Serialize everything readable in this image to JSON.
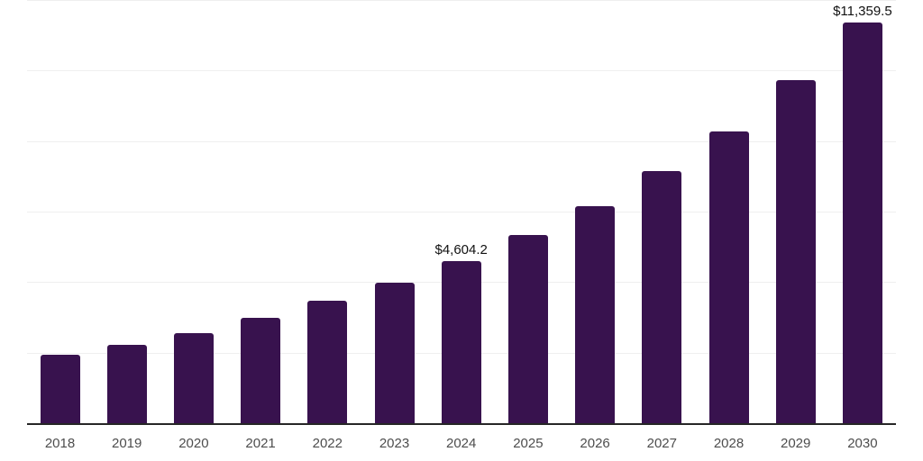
{
  "chart_data": {
    "type": "bar",
    "title": "",
    "xlabel": "",
    "ylabel": "",
    "categories": [
      "2018",
      "2019",
      "2020",
      "2021",
      "2022",
      "2023",
      "2024",
      "2025",
      "2026",
      "2027",
      "2028",
      "2029",
      "2030"
    ],
    "values": [
      1950,
      2230,
      2565,
      2975,
      3475,
      3990,
      4604.2,
      5335,
      6155,
      7155,
      8280,
      9720,
      11359.5
    ],
    "data_labels": [
      "",
      "",
      "",
      "",
      "",
      "",
      "$4,604.2",
      "",
      "",
      "",
      "",
      "",
      "$11,359.5"
    ],
    "ylim": [
      0,
      12000
    ],
    "grid_step": 2000,
    "grid": "horizontal only, no y tick labels",
    "legend": "none",
    "colors": {
      "bar": "#38124E",
      "axis_line": "#262626",
      "gridline": "#efefef",
      "tick_label": "#4d4d4d",
      "data_label": "#111111",
      "background": "#ffffff"
    }
  }
}
